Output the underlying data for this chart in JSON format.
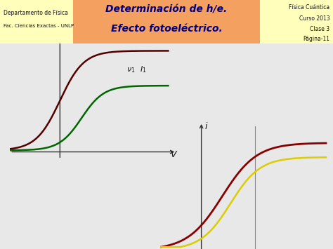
{
  "title_main": "Determinación de h/e.",
  "title_sub": "Efecto fotoeléctrico.",
  "top_left_line1": "Departamento de Física",
  "top_left_line2": "Fac. Ciencias Exactas - UNLP",
  "top_right_line1": "Física Cuántica",
  "top_right_line2": "Curso 2013",
  "top_right_line3": "Clase 3",
  "top_right_line4": "Página-11",
  "header_bg": "#F4A060",
  "header_side_bg": "#FFFFBB",
  "background": "#E8E8E8",
  "plot_bg": "#E8E8E8",
  "plot1_dark_color": "#550000",
  "plot1_green_color": "#006600",
  "plot2_dark_color": "#880000",
  "plot2_yellow_color": "#DDCC00",
  "axis_color": "#333333",
  "vline_color": "#888888"
}
